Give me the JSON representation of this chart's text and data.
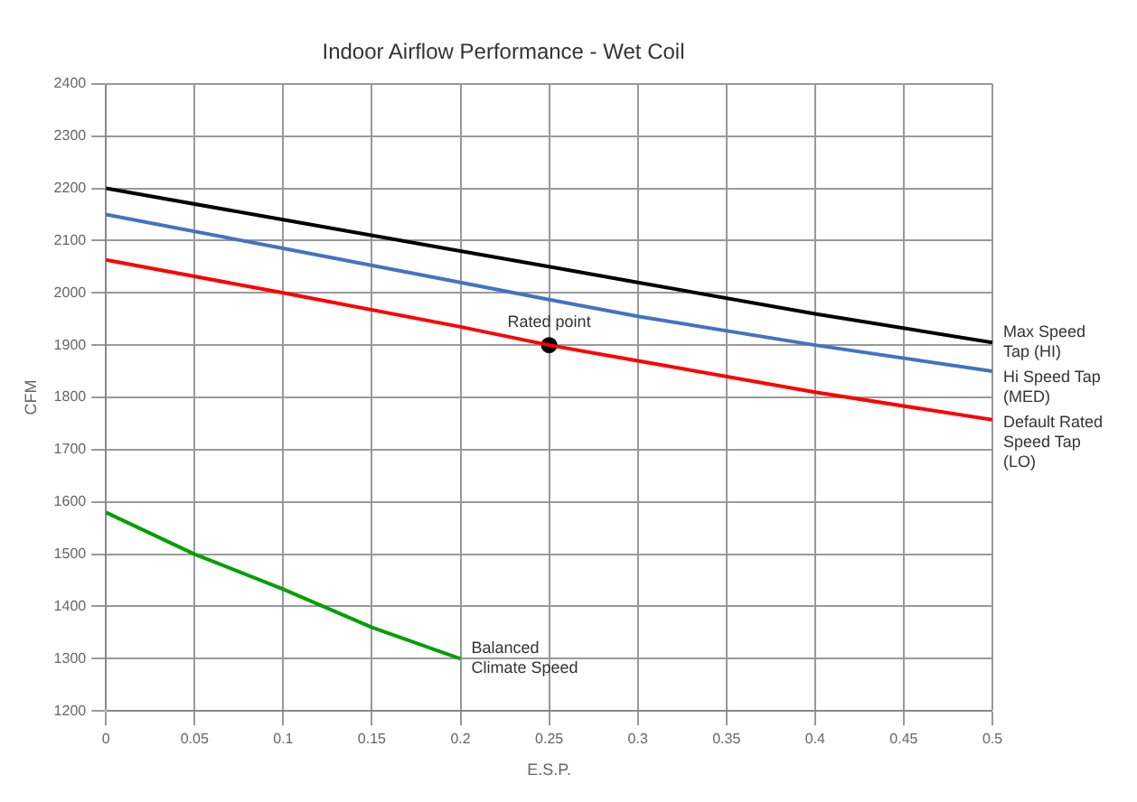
{
  "chart_data": {
    "type": "line",
    "title": "Indoor Airflow Performance - Wet Coil",
    "xlabel": "E.S.P.",
    "ylabel": "CFM",
    "x": [
      0,
      0.1,
      0.2,
      0.25,
      0.3,
      0.4,
      0.5
    ],
    "series": [
      {
        "name": "Max Speed Tap (HI)",
        "color": "#000000",
        "values": [
          2200,
          2140,
          2080,
          2050,
          2020,
          1960,
          1905
        ]
      },
      {
        "name": "Hi Speed Tap (MED)",
        "color": "#4472c4",
        "values": [
          2150,
          2085,
          2020,
          1987,
          1955,
          1900,
          1850
        ]
      },
      {
        "name": "Default Rated Speed Tap (LO)",
        "color": "#ff0000",
        "values": [
          2063,
          2000,
          1935,
          1900,
          1870,
          1810,
          1757
        ]
      },
      {
        "name": "Balanced Climate Speed",
        "color": "#00a000",
        "x": [
          0,
          0.05,
          0.1,
          0.15,
          0.2
        ],
        "values": [
          1580,
          1500,
          1433,
          1360,
          1300
        ]
      },
      {
        "type": "scatter",
        "color": "#000000",
        "x": [
          0.25
        ],
        "values": [
          1900
        ],
        "marker": "circle"
      }
    ],
    "annotations": [
      {
        "text": "Rated point",
        "x": 0.25,
        "y": 1900
      }
    ],
    "xlim": [
      0,
      0.5
    ],
    "xticks": [
      0,
      0.05,
      0.1,
      0.15,
      0.2,
      0.25,
      0.3,
      0.35,
      0.4,
      0.45,
      0.5
    ],
    "ylim": [
      1200,
      2400
    ],
    "yticks": [
      1200,
      1300,
      1400,
      1500,
      1600,
      1700,
      1800,
      1900,
      2000,
      2100,
      2200,
      2300,
      2400
    ],
    "grid": true,
    "legend": false,
    "marker": "none",
    "line_style": "solid"
  }
}
